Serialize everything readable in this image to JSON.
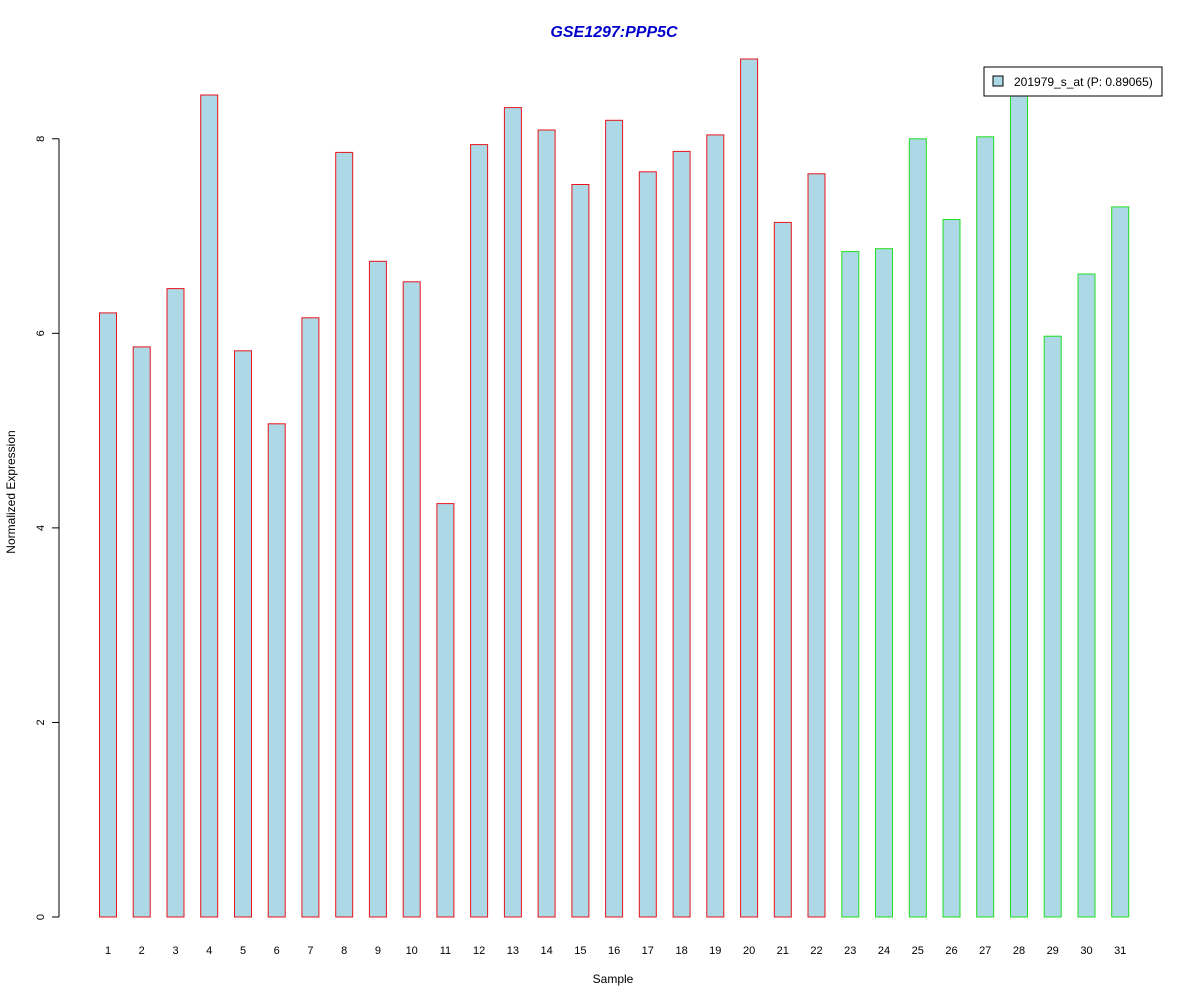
{
  "chart_data": {
    "type": "bar",
    "title": "GSE1297:PPP5C",
    "xlabel": "Sample",
    "ylabel": "Normalized Expression",
    "ylim": [
      0,
      8.82
    ],
    "yticks": [
      0,
      2,
      4,
      6,
      8
    ],
    "grid": false,
    "legend_position": "top-right",
    "categories": [
      "1",
      "2",
      "3",
      "4",
      "5",
      "6",
      "7",
      "8",
      "9",
      "10",
      "11",
      "12",
      "13",
      "14",
      "15",
      "16",
      "17",
      "18",
      "19",
      "20",
      "21",
      "22",
      "23",
      "24",
      "25",
      "26",
      "27",
      "28",
      "29",
      "30",
      "31"
    ],
    "series": [
      {
        "name": "201979_s_at (P: 0.89065)",
        "values": [
          6.21,
          5.86,
          6.46,
          8.45,
          5.82,
          5.07,
          6.16,
          7.86,
          6.74,
          6.53,
          4.25,
          7.94,
          8.32,
          8.09,
          7.53,
          8.19,
          7.66,
          7.87,
          8.04,
          8.82,
          7.14,
          7.64,
          6.84,
          6.87,
          8.0,
          7.17,
          8.02,
          8.52,
          5.97,
          6.61,
          7.3
        ]
      }
    ],
    "groups": [
      {
        "samples": [
          1,
          22
        ],
        "border_color": "#e8141c"
      },
      {
        "samples": [
          23,
          31
        ],
        "border_color": "#1ee01e"
      }
    ],
    "colors": {
      "bar_fill": "#add8e6",
      "title": "#0000cd",
      "legend_swatch": "#add8e6"
    }
  }
}
